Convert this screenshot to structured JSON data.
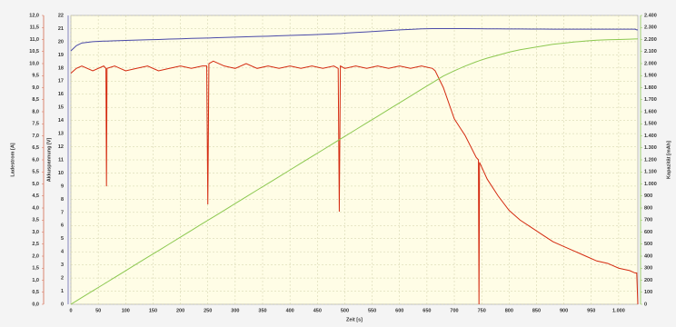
{
  "chart_data": {
    "type": "line",
    "xlabel": "Zeit [s]",
    "ylabel": "Ladestrom [A]",
    "y2label": "Akkuspannung [V]",
    "y3label": "Kapazität [mAh]",
    "x": [
      0,
      10,
      20,
      40,
      60,
      64,
      65,
      66,
      80,
      100,
      120,
      140,
      160,
      180,
      200,
      220,
      240,
      248,
      250,
      252,
      260,
      280,
      300,
      320,
      340,
      360,
      380,
      400,
      420,
      440,
      460,
      480,
      488,
      490,
      492,
      500,
      520,
      540,
      560,
      580,
      600,
      620,
      640,
      660,
      665,
      680,
      700,
      720,
      740,
      744,
      745,
      746,
      760,
      780,
      800,
      820,
      840,
      860,
      880,
      900,
      920,
      940,
      960,
      980,
      1000,
      1020,
      1030,
      1033,
      1035
    ],
    "series": [
      {
        "axis": "y",
        "color": "#d42a10",
        "values": [
          9.6,
          9.8,
          9.9,
          9.7,
          9.9,
          9.8,
          4.9,
          9.8,
          9.9,
          9.7,
          9.8,
          9.9,
          9.7,
          9.8,
          9.9,
          9.8,
          9.9,
          9.9,
          4.15,
          10.0,
          10.1,
          9.9,
          9.8,
          10.0,
          9.8,
          9.9,
          9.8,
          9.9,
          9.8,
          9.9,
          9.8,
          9.9,
          9.8,
          3.85,
          9.9,
          9.8,
          9.9,
          9.8,
          9.9,
          9.8,
          9.9,
          9.8,
          9.9,
          9.8,
          9.7,
          9.0,
          7.7,
          7.0,
          6.1,
          6.0,
          0,
          5.9,
          5.2,
          4.5,
          3.9,
          3.5,
          3.2,
          2.9,
          2.6,
          2.4,
          2.2,
          2.0,
          1.8,
          1.7,
          1.5,
          1.4,
          1.3,
          1.3,
          0
        ]
      },
      {
        "axis": "y2",
        "color": "#4a4aa8",
        "values": [
          19.3,
          19.7,
          19.9,
          20.0,
          20.05,
          20.05,
          20.05,
          20.05,
          20.07,
          20.1,
          20.12,
          20.15,
          20.17,
          20.2,
          20.22,
          20.25,
          20.27,
          20.28,
          20.28,
          20.28,
          20.3,
          20.32,
          20.35,
          20.37,
          20.4,
          20.42,
          20.45,
          20.48,
          20.5,
          20.53,
          20.56,
          20.6,
          20.62,
          20.62,
          20.62,
          20.65,
          20.7,
          20.75,
          20.8,
          20.85,
          20.9,
          20.94,
          20.98,
          21.0,
          21.0,
          21.0,
          21.0,
          21.0,
          20.99,
          20.99,
          20.99,
          20.99,
          20.98,
          20.98,
          20.97,
          20.97,
          20.96,
          20.96,
          20.95,
          20.95,
          20.95,
          20.95,
          20.95,
          20.95,
          20.95,
          20.95,
          20.95,
          20.9,
          20.9
        ]
      },
      {
        "axis": "y3",
        "color": "#8cc850",
        "values": [
          0,
          28,
          56,
          112,
          167,
          179,
          181,
          184,
          223,
          279,
          335,
          391,
          446,
          502,
          558,
          614,
          670,
          692,
          698,
          703,
          725,
          781,
          837,
          893,
          949,
          1004,
          1060,
          1116,
          1172,
          1228,
          1283,
          1339,
          1362,
          1367,
          1373,
          1395,
          1451,
          1507,
          1562,
          1618,
          1674,
          1730,
          1786,
          1841,
          1855,
          1897,
          1940,
          1980,
          2015,
          2021,
          2023,
          2025,
          2045,
          2070,
          2095,
          2115,
          2130,
          2145,
          2160,
          2170,
          2180,
          2188,
          2194,
          2198,
          2200,
          2203,
          2205,
          2205,
          2206
        ]
      }
    ],
    "xlim": [
      0,
      1035
    ],
    "xticks": [
      0,
      50,
      100,
      150,
      200,
      250,
      300,
      350,
      400,
      450,
      500,
      550,
      600,
      650,
      700,
      750,
      800,
      850,
      900,
      950,
      {
        "value": 1000,
        "label": "1.000"
      }
    ],
    "ylim": [
      0,
      12
    ],
    "yticks": [
      {
        "value": 0,
        "label": "0,0"
      },
      {
        "value": 0.5,
        "label": "0,5"
      },
      {
        "value": 1,
        "label": "1,0"
      },
      {
        "value": 1.5,
        "label": "1,5"
      },
      {
        "value": 2,
        "label": "2,0"
      },
      {
        "value": 2.5,
        "label": "2,5"
      },
      {
        "value": 3,
        "label": "3,0"
      },
      {
        "value": 3.5,
        "label": "3,5"
      },
      {
        "value": 4,
        "label": "4,0"
      },
      {
        "value": 4.5,
        "label": "4,5"
      },
      {
        "value": 5,
        "label": "5,0"
      },
      {
        "value": 5.5,
        "label": "5,5"
      },
      {
        "value": 6,
        "label": "6,0"
      },
      {
        "value": 6.5,
        "label": "6,5"
      },
      {
        "value": 7,
        "label": "7,0"
      },
      {
        "value": 7.5,
        "label": "7,5"
      },
      {
        "value": 8,
        "label": "8,0"
      },
      {
        "value": 8.5,
        "label": "8,5"
      },
      {
        "value": 9,
        "label": "9,0"
      },
      {
        "value": 9.5,
        "label": "9,5"
      },
      {
        "value": 10,
        "label": "10,0"
      },
      {
        "value": 10.5,
        "label": "10,5"
      },
      {
        "value": 11,
        "label": "11,0"
      },
      {
        "value": 11.5,
        "label": "11,5"
      },
      {
        "value": 12,
        "label": "12,0"
      }
    ],
    "y2lim": [
      0,
      22
    ],
    "y2ticks": [
      0,
      1,
      2,
      3,
      4,
      5,
      6,
      7,
      8,
      9,
      10,
      11,
      12,
      13,
      14,
      15,
      16,
      17,
      18,
      19,
      20,
      21,
      22
    ],
    "y3lim": [
      0,
      2400
    ],
    "y3ticks": [
      0,
      100,
      200,
      300,
      400,
      500,
      600,
      700,
      800,
      900,
      {
        "value": 1000,
        "label": "1.000"
      },
      {
        "value": 1100,
        "label": "1.100"
      },
      {
        "value": 1200,
        "label": "1.200"
      },
      {
        "value": 1300,
        "label": "1.300"
      },
      {
        "value": 1400,
        "label": "1.400"
      },
      {
        "value": 1500,
        "label": "1.500"
      },
      {
        "value": 1600,
        "label": "1.600"
      },
      {
        "value": 1700,
        "label": "1.700"
      },
      {
        "value": 1800,
        "label": "1.800"
      },
      {
        "value": 1900,
        "label": "1.900"
      },
      {
        "value": 2000,
        "label": "2.000"
      },
      {
        "value": 2100,
        "label": "2.100"
      },
      {
        "value": 2200,
        "label": "2.200"
      },
      {
        "value": 2300,
        "label": "2.300"
      },
      {
        "value": 2400,
        "label": "2.400"
      }
    ],
    "grid": true
  }
}
